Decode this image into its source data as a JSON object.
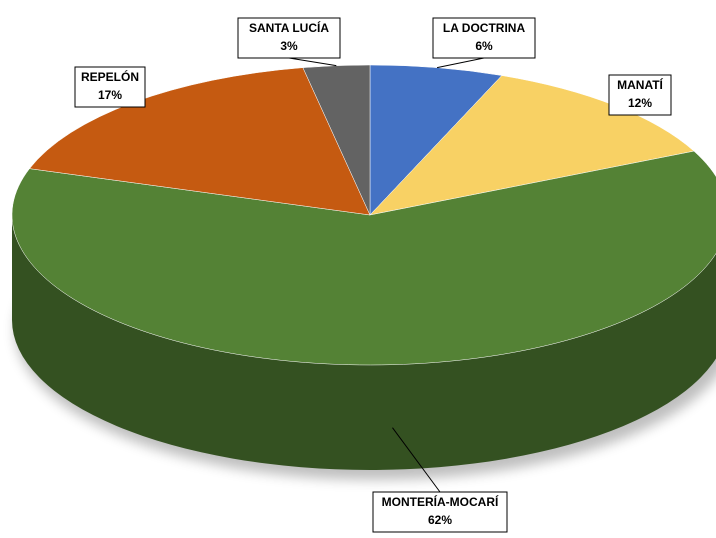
{
  "chart_data": {
    "type": "pie3d",
    "categories": [
      "LA DOCTRINA",
      "MANATÍ",
      "MONTERÍA-MOCARÍ",
      "REPELÓN",
      "SANTA LUCÍA"
    ],
    "values": [
      6,
      12,
      62,
      17,
      3
    ],
    "value_labels": [
      "6%",
      "12%",
      "62%",
      "17%",
      "3%"
    ],
    "colors": [
      "#4472c4",
      "#f8d164",
      "#548235",
      "#c55a11",
      "#636363"
    ]
  }
}
